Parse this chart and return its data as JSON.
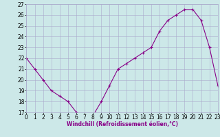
{
  "x": [
    0,
    1,
    2,
    3,
    4,
    5,
    6,
    7,
    8,
    9,
    10,
    11,
    12,
    13,
    14,
    15,
    16,
    17,
    18,
    19,
    20,
    21,
    22,
    23
  ],
  "y": [
    22,
    21,
    20,
    19,
    18.5,
    18,
    17,
    16.8,
    16.7,
    18,
    19.5,
    21,
    21.5,
    22,
    22.5,
    23,
    24.5,
    25.5,
    26,
    26.5,
    26.5,
    25.5,
    23.0,
    19.5
  ],
  "xlabel": "Windchill (Refroidissement éolien,°C)",
  "ylim_min": 17,
  "ylim_max": 27,
  "xlim_min": 0,
  "xlim_max": 23,
  "line_color": "#880088",
  "marker": "+",
  "bg_color": "#cce8e8",
  "grid_color": "#aaaacc",
  "xlabel_fontsize": 5.5,
  "tick_fontsize": 5.5,
  "linewidth": 0.8,
  "markersize": 3.0,
  "markeredgewidth": 0.8
}
